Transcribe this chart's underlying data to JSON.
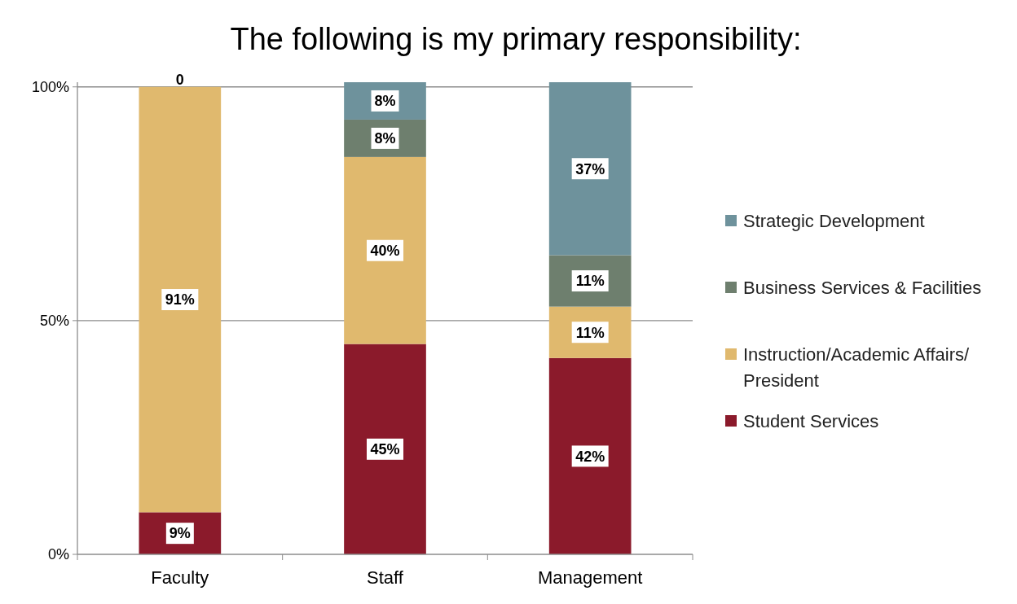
{
  "chart_data": {
    "type": "bar",
    "title": "The following is my primary responsibility:",
    "categories": [
      "Faculty",
      "Staff",
      "Management"
    ],
    "stacked": true,
    "ylim": [
      0,
      101
    ],
    "yticks": [
      {
        "value": 0,
        "label": "0%"
      },
      {
        "value": 50,
        "label": "50%"
      },
      {
        "value": 100,
        "label": "100%"
      }
    ],
    "grid": "y",
    "legend": "right",
    "series": [
      {
        "name": "Student Services",
        "color": "#8b1a2b",
        "values": [
          9,
          45,
          42
        ],
        "value_labels": [
          "9%",
          "45%",
          "42%"
        ]
      },
      {
        "name": "Instruction/Academic Affairs/President",
        "color": "#e0b96e",
        "values": [
          91,
          40,
          11
        ],
        "value_labels": [
          "91%",
          "40%",
          "11%"
        ]
      },
      {
        "name": "Business Services & Facilities",
        "color": "#6e7f6e",
        "values": [
          0,
          8,
          11
        ],
        "value_labels": [
          null,
          "8%",
          "11%"
        ]
      },
      {
        "name": "Strategic Development",
        "color": "#6e929c",
        "values": [
          0,
          8,
          37
        ],
        "value_labels": [
          "0",
          "8%",
          "37%"
        ]
      }
    ]
  }
}
